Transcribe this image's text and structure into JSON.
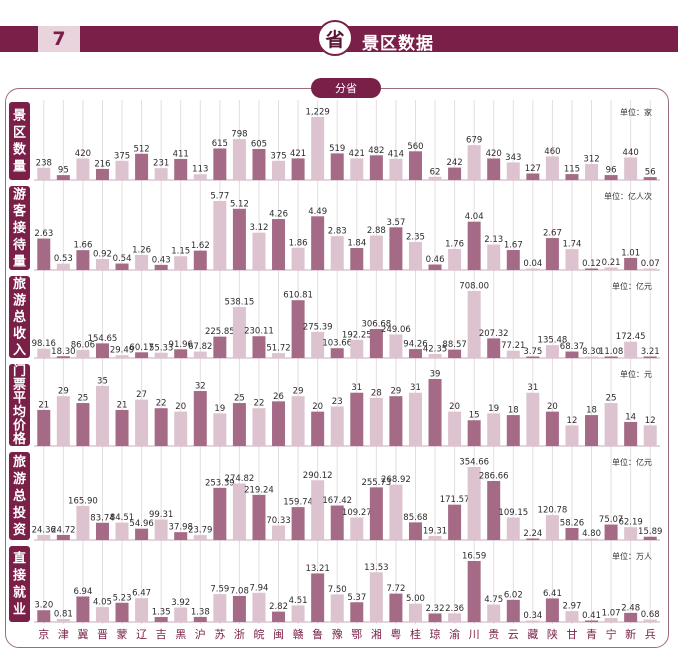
{
  "header": {
    "page_number": "7",
    "province_char": "省",
    "title": "景区数据",
    "group_label": "分省"
  },
  "colors": {
    "accent": "#7a1f47",
    "bar_dark": "#a46a86",
    "bar_light": "#dcc3cf",
    "label_panel": "#7a1f47",
    "frame": "#9b6b82"
  },
  "chart_data": {
    "type": "bar",
    "categories": [
      "京",
      "津",
      "冀",
      "晋",
      "蒙",
      "辽",
      "吉",
      "黑",
      "沪",
      "苏",
      "浙",
      "皖",
      "闽",
      "赣",
      "鲁",
      "豫",
      "鄂",
      "湘",
      "粤",
      "桂",
      "琼",
      "渝",
      "川",
      "贵",
      "云",
      "藏",
      "陕",
      "甘",
      "青",
      "宁",
      "新",
      "兵"
    ],
    "series": [
      {
        "name": "景区数量",
        "unit": "单位：家",
        "values": [
          238,
          95,
          420,
          216,
          375,
          512,
          231,
          411,
          113,
          615,
          798,
          605,
          375,
          421,
          1229,
          519,
          421,
          482,
          414,
          560,
          62,
          242,
          679,
          420,
          343,
          127,
          460,
          115,
          312,
          96,
          440,
          56
        ],
        "labels": [
          "238",
          "95",
          "420",
          "216",
          "375",
          "512",
          "231",
          "411",
          "113",
          "615",
          "798",
          "605",
          "375",
          "421",
          "1,229",
          "519",
          "421",
          "482",
          "414",
          "560",
          "62",
          "242",
          "679",
          "420",
          "343",
          "127",
          "460",
          "115",
          "312",
          "96",
          "440",
          "56"
        ]
      },
      {
        "name": "游客接待量",
        "unit": "单位：亿人次",
        "values": [
          2.63,
          0.53,
          1.66,
          0.92,
          0.54,
          1.26,
          0.43,
          1.15,
          1.62,
          5.77,
          5.12,
          3.12,
          4.26,
          1.86,
          4.49,
          2.83,
          1.84,
          2.88,
          3.57,
          2.35,
          0.46,
          1.76,
          4.04,
          2.13,
          1.67,
          0.04,
          2.67,
          1.74,
          0.12,
          0.21,
          1.01,
          0.07
        ],
        "labels": [
          "2.63",
          "0.53",
          "1.66",
          "0.92",
          "0.54",
          "1.26",
          "0.43",
          "1.15",
          "1.62",
          "5.77",
          "5.12",
          "3.12",
          "4.26",
          "1.86",
          "4.49",
          "2.83",
          "1.84",
          "2.88",
          "3.57",
          "2.35",
          "0.46",
          "1.76",
          "4.04",
          "2.13",
          "1.67",
          "0.04",
          "2.67",
          "1.74",
          "0.12",
          "0.21",
          "1.01",
          "0.07"
        ]
      },
      {
        "name": "旅游总收入",
        "unit": "单位：亿元",
        "values": [
          98.16,
          18.3,
          86.06,
          154.65,
          29.49,
          60.17,
          55.33,
          91.96,
          67.82,
          225.85,
          538.15,
          230.11,
          51.72,
          610.81,
          275.39,
          103.66,
          192.25,
          306.68,
          249.06,
          94.26,
          42.35,
          88.57,
          708.0,
          207.32,
          77.21,
          3.75,
          135.48,
          68.37,
          8.3,
          11.08,
          172.45,
          3.21
        ],
        "labels": [
          "98.16",
          "18.30",
          "86.06",
          "154.65",
          "29.49",
          "60.17",
          "55.33",
          "91.96",
          "67.82",
          "225.85",
          "538.15",
          "230.11",
          "51.72",
          "610.81",
          "275.39",
          "103.66",
          "192.25",
          "306.68",
          "249.06",
          "94.26",
          "42.35",
          "88.57",
          "708.00",
          "207.32",
          "77.21",
          "3.75",
          "135.48",
          "68.37",
          "8.30",
          "11.08",
          "172.45",
          "3.21"
        ]
      },
      {
        "name": "门票平均价格",
        "unit": "单位：元",
        "values": [
          21,
          29,
          25,
          35,
          21,
          27,
          22,
          20,
          32,
          19,
          25,
          22,
          26,
          29,
          20,
          23,
          31,
          28,
          29,
          31,
          39,
          20,
          15,
          19,
          18,
          31,
          20,
          12,
          18,
          25,
          14,
          12
        ],
        "labels": [
          "21",
          "29",
          "25",
          "35",
          "21",
          "27",
          "22",
          "20",
          "32",
          "19",
          "25",
          "22",
          "26",
          "29",
          "20",
          "23",
          "31",
          "28",
          "29",
          "31",
          "39",
          "20",
          "15",
          "19",
          "18",
          "31",
          "20",
          "12",
          "18",
          "25",
          "14",
          "12"
        ]
      },
      {
        "name": "旅游总投资",
        "unit": "单位：亿元",
        "values": [
          24.36,
          24.72,
          165.9,
          83.74,
          84.51,
          54.96,
          99.31,
          37.98,
          23.79,
          253.39,
          274.82,
          219.24,
          70.33,
          159.74,
          290.12,
          167.42,
          109.27,
          255.73,
          268.92,
          85.68,
          19.31,
          171.57,
          354.66,
          286.66,
          109.15,
          2.24,
          120.78,
          58.26,
          4.8,
          75.07,
          62.19,
          15.89
        ],
        "labels": [
          "24.36",
          "24.72",
          "165.90",
          "83.74",
          "84.51",
          "54.96",
          "99.31",
          "37.98",
          "23.79",
          "253.39",
          "274.82",
          "219.24",
          "70.33",
          "159.74",
          "290.12",
          "167.42",
          "109.27",
          "255.73",
          "268.92",
          "85.68",
          "19.31",
          "171.57",
          "354.66",
          "286.66",
          "109.15",
          "2.24",
          "120.78",
          "58.26",
          "4.80",
          "75.07",
          "62.19",
          "15.89"
        ]
      },
      {
        "name": "直接就业",
        "unit": "单位：万人",
        "values": [
          3.2,
          0.81,
          6.94,
          4.05,
          5.23,
          6.47,
          1.35,
          3.92,
          1.38,
          7.59,
          7.08,
          7.94,
          2.82,
          4.51,
          13.21,
          7.5,
          5.37,
          13.53,
          7.72,
          5.0,
          2.32,
          2.36,
          16.59,
          4.75,
          6.02,
          0.34,
          6.41,
          2.97,
          0.41,
          1.07,
          2.48,
          0.68
        ],
        "labels": [
          "3.20",
          "0.81",
          "6.94",
          "4.05",
          "5.23",
          "6.47",
          "1.35",
          "3.92",
          "1.38",
          "7.59",
          "7.08",
          "7.94",
          "2.82",
          "4.51",
          "13.21",
          "7.50",
          "5.37",
          "13.53",
          "7.72",
          "5.00",
          "2.32",
          "2.36",
          "16.59",
          "4.75",
          "6.02",
          "0.34",
          "6.41",
          "2.97",
          "0.41",
          "1.07",
          "2.48",
          "0.68"
        ]
      }
    ]
  }
}
